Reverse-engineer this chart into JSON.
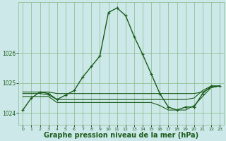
{
  "background_color": "#cce8e8",
  "grid_color": "#88bb88",
  "line_color": "#1a5c1a",
  "xlabel": "Graphe pression niveau de la mer (hPa)",
  "xlabel_fontsize": 7.0,
  "ylim": [
    1023.6,
    1027.7
  ],
  "xlim": [
    -0.5,
    23.5
  ],
  "yticks": [
    1024,
    1025,
    1026
  ],
  "xticks": [
    0,
    1,
    2,
    3,
    4,
    5,
    6,
    7,
    8,
    9,
    10,
    11,
    12,
    13,
    14,
    15,
    16,
    17,
    18,
    19,
    20,
    21,
    22,
    23
  ],
  "series": [
    {
      "x": [
        0,
        1,
        2,
        3,
        4,
        5,
        6,
        7,
        8,
        9,
        10,
        11,
        12,
        13,
        14,
        15,
        16,
        17,
        18,
        19,
        20,
        21,
        22,
        23
      ],
      "y": [
        1024.1,
        1024.5,
        1024.7,
        1024.65,
        1024.45,
        1024.6,
        1024.75,
        1025.2,
        1025.55,
        1025.9,
        1027.35,
        1027.5,
        1027.25,
        1026.55,
        1025.95,
        1025.3,
        1024.65,
        1024.2,
        1024.1,
        1024.2,
        1024.2,
        1024.65,
        1024.9,
        1024.9
      ],
      "has_markers": true,
      "linewidth": 1.0
    },
    {
      "x": [
        0,
        1,
        2,
        3,
        4,
        5,
        6,
        7,
        8,
        9,
        10,
        11,
        12,
        13,
        14,
        15,
        16,
        17,
        18,
        19,
        20,
        21,
        22,
        23
      ],
      "y": [
        1024.7,
        1024.7,
        1024.7,
        1024.7,
        1024.65,
        1024.65,
        1024.65,
        1024.65,
        1024.65,
        1024.65,
        1024.65,
        1024.65,
        1024.65,
        1024.65,
        1024.65,
        1024.65,
        1024.65,
        1024.65,
        1024.65,
        1024.65,
        1024.65,
        1024.7,
        1024.85,
        1024.9
      ],
      "has_markers": false,
      "linewidth": 0.8
    },
    {
      "x": [
        0,
        1,
        2,
        3,
        4,
        5,
        6,
        7,
        8,
        9,
        10,
        11,
        12,
        13,
        14,
        15,
        16,
        17,
        18,
        19,
        20,
        21,
        22,
        23
      ],
      "y": [
        1024.65,
        1024.65,
        1024.65,
        1024.6,
        1024.45,
        1024.45,
        1024.45,
        1024.45,
        1024.45,
        1024.45,
        1024.45,
        1024.45,
        1024.45,
        1024.45,
        1024.45,
        1024.45,
        1024.45,
        1024.45,
        1024.45,
        1024.45,
        1024.5,
        1024.75,
        1024.9,
        1024.9
      ],
      "has_markers": false,
      "linewidth": 0.8
    },
    {
      "x": [
        0,
        1,
        2,
        3,
        4,
        5,
        6,
        7,
        8,
        9,
        10,
        11,
        12,
        13,
        14,
        15,
        16,
        17,
        18,
        19,
        20,
        21,
        22,
        23
      ],
      "y": [
        1024.55,
        1024.55,
        1024.55,
        1024.55,
        1024.35,
        1024.35,
        1024.35,
        1024.35,
        1024.35,
        1024.35,
        1024.35,
        1024.35,
        1024.35,
        1024.35,
        1024.35,
        1024.35,
        1024.25,
        1024.1,
        1024.1,
        1024.1,
        1024.25,
        1024.55,
        1024.85,
        1024.9
      ],
      "has_markers": false,
      "linewidth": 0.8
    }
  ]
}
